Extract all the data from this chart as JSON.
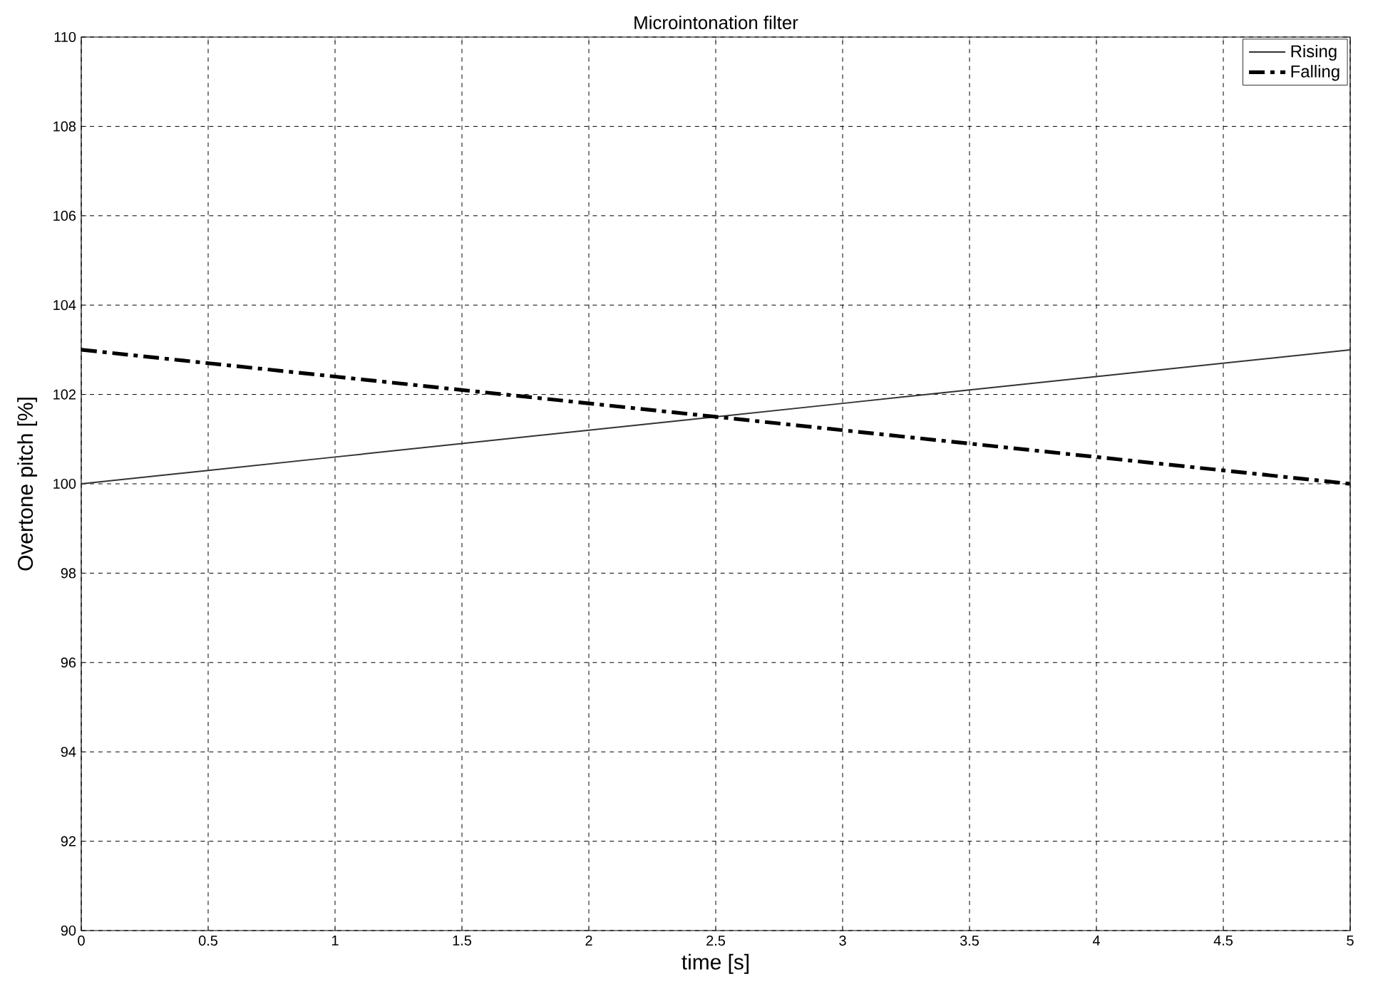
{
  "chart_data": {
    "type": "line",
    "title": "Microintonation filter",
    "xlabel": "time [s]",
    "ylabel": "Overtone pitch [%]",
    "series": [
      {
        "name": "Rising",
        "color": "#333333",
        "line_style": "solid",
        "x": [
          0,
          0.5,
          1,
          1.5,
          2,
          2.5,
          3,
          3.5,
          4,
          4.5,
          5
        ],
        "values": [
          100,
          100.3,
          100.6,
          100.9,
          101.2,
          101.5,
          101.8,
          102.1,
          102.4,
          102.7,
          103
        ]
      },
      {
        "name": "Falling",
        "color": "#000000",
        "line_style": "dashdot",
        "x": [
          0,
          0.5,
          1,
          1.5,
          2,
          2.5,
          3,
          3.5,
          4,
          4.5,
          5
        ],
        "values": [
          103,
          102.7,
          102.4,
          102.1,
          101.8,
          101.5,
          101.2,
          100.9,
          100.6,
          100.3,
          100
        ]
      }
    ],
    "xlim": [
      0,
      5
    ],
    "ylim": [
      90,
      110
    ],
    "xticks": [
      0,
      0.5,
      1,
      1.5,
      2,
      2.5,
      3,
      3.5,
      4,
      4.5,
      5
    ],
    "yticks": [
      90,
      92,
      94,
      96,
      98,
      100,
      102,
      104,
      106,
      108,
      110
    ],
    "grid": true,
    "legend": "top right"
  }
}
